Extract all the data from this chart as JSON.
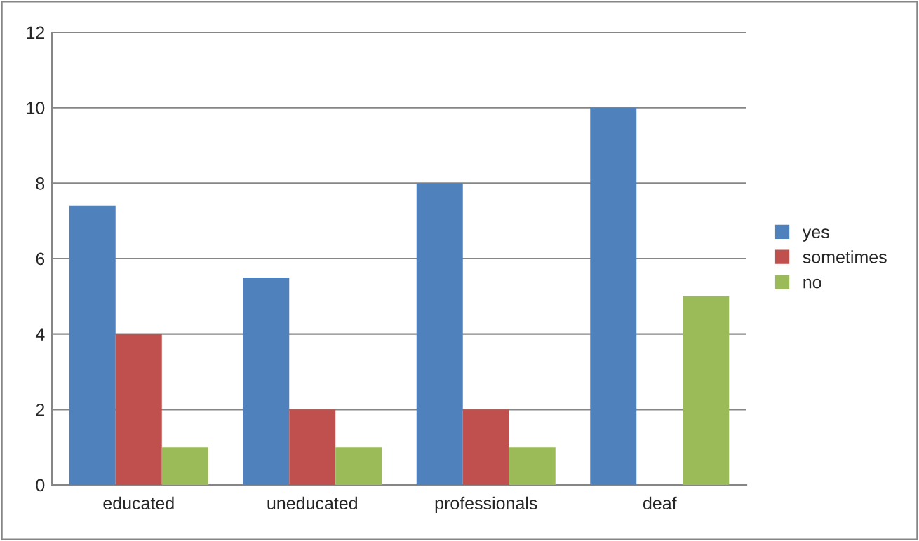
{
  "chart_data": {
    "type": "bar",
    "categories": [
      "educated",
      "uneducated",
      "professionals",
      "deaf"
    ],
    "series": [
      {
        "name": "yes",
        "color": "#4f81bd",
        "values": [
          7.4,
          5.5,
          8,
          10
        ]
      },
      {
        "name": "sometimes",
        "color": "#c0504d",
        "values": [
          4,
          2,
          2,
          null
        ]
      },
      {
        "name": "no",
        "color": "#9bbb59",
        "values": [
          1,
          1,
          1,
          5
        ]
      }
    ],
    "ylim": [
      0,
      12
    ],
    "yticks": [
      0,
      2,
      4,
      6,
      8,
      10,
      12
    ],
    "grid": "y",
    "legend": "right"
  }
}
